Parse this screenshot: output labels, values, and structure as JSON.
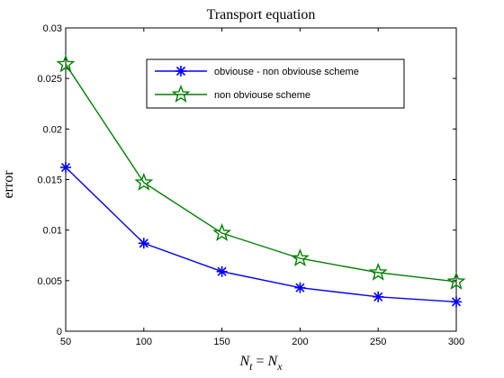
{
  "chart_data": {
    "type": "line",
    "title": "Transport equation",
    "xlabel": {
      "base1": "N",
      "sub1": "t",
      "mid": " = ",
      "base2": "N",
      "sub2": "x"
    },
    "ylabel": "error",
    "x": [
      50,
      100,
      150,
      200,
      250,
      300
    ],
    "xlim": [
      50,
      300
    ],
    "ylim": [
      0,
      0.03
    ],
    "xticks": [
      50,
      100,
      150,
      200,
      250,
      300
    ],
    "yticks": [
      0,
      0.005,
      0.01,
      0.015,
      0.02,
      0.025,
      0.03
    ],
    "xtick_labels": [
      "50",
      "100",
      "150",
      "200",
      "250",
      "300"
    ],
    "ytick_labels": [
      "0",
      "0.005",
      "0.01",
      "0.015",
      "0.02",
      "0.025",
      "0.03"
    ],
    "grid": false,
    "legend_position": "top-right",
    "series": [
      {
        "name": "obviouse - non obviouse scheme",
        "color": "#0000ff",
        "marker": "asterisk",
        "values": [
          0.0162,
          0.0087,
          0.0059,
          0.0043,
          0.0034,
          0.0029
        ]
      },
      {
        "name": "non obviouse scheme",
        "color": "#008000",
        "marker": "pentagram",
        "values": [
          0.0264,
          0.0147,
          0.0097,
          0.0072,
          0.0058,
          0.0049
        ]
      }
    ]
  }
}
